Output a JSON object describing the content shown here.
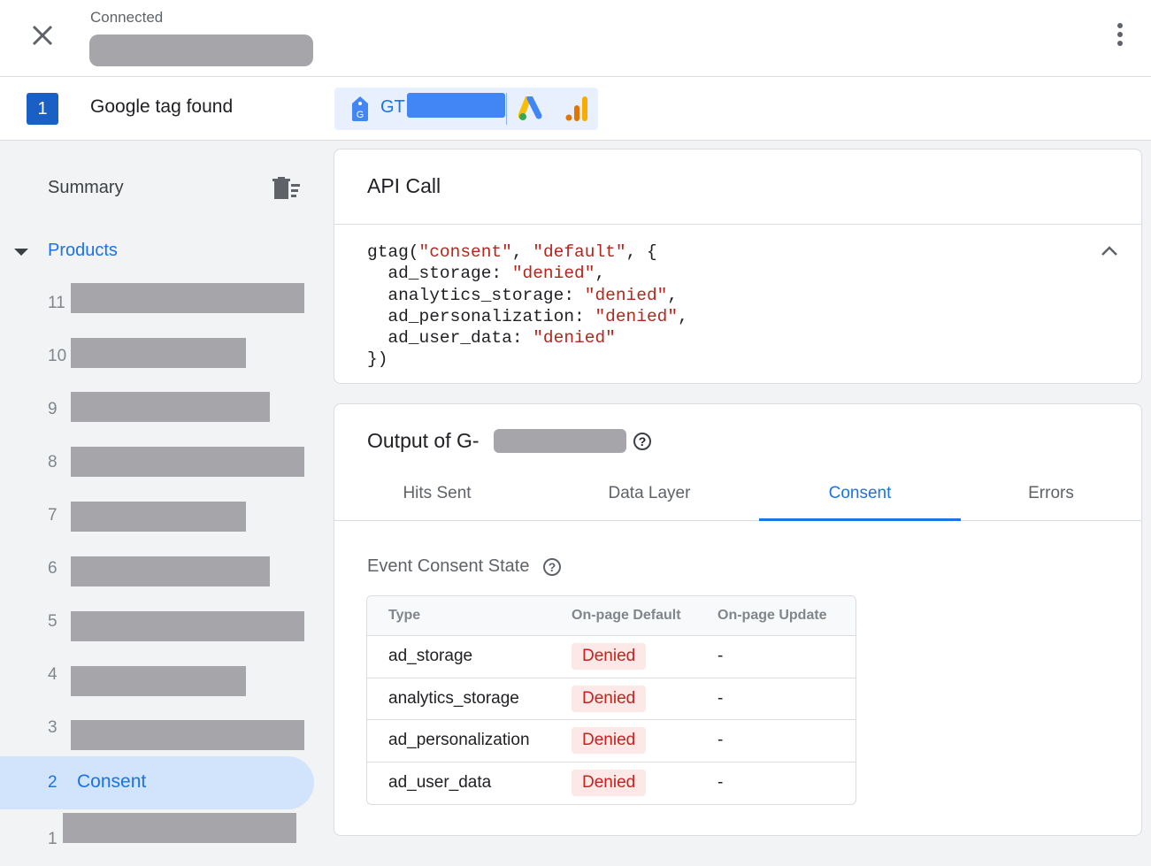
{
  "header": {
    "status": "Connected",
    "close_icon": "close-icon",
    "more_icon": "more-vert-icon"
  },
  "tagbar": {
    "count": "1",
    "label": "Google tag found",
    "tag_prefix": "GT"
  },
  "sidebar": {
    "summary": "Summary",
    "products": "Products",
    "items": [
      {
        "num": "11"
      },
      {
        "num": "10"
      },
      {
        "num": "9"
      },
      {
        "num": "8"
      },
      {
        "num": "7"
      },
      {
        "num": "6"
      },
      {
        "num": "5"
      },
      {
        "num": "4"
      },
      {
        "num": "3"
      },
      {
        "num": "2",
        "label": "Consent"
      },
      {
        "num": "1"
      }
    ]
  },
  "api": {
    "title": "API Call"
  },
  "output": {
    "title": "Output of G-",
    "tabs": [
      "Hits Sent",
      "Data Layer",
      "Consent",
      "Errors"
    ],
    "active_tab": "Consent",
    "section": "Event Consent State",
    "table": {
      "headers": [
        "Type",
        "On-page Default",
        "On-page Update"
      ],
      "rows": [
        [
          "ad_storage",
          "Denied",
          "-"
        ],
        [
          "analytics_storage",
          "Denied",
          "-"
        ],
        [
          "ad_personalization",
          "Denied",
          "-"
        ],
        [
          "ad_user_data",
          "Denied",
          "-"
        ]
      ]
    }
  },
  "colors": {
    "accent": "#1a73e8",
    "denied": "#c5221f"
  }
}
